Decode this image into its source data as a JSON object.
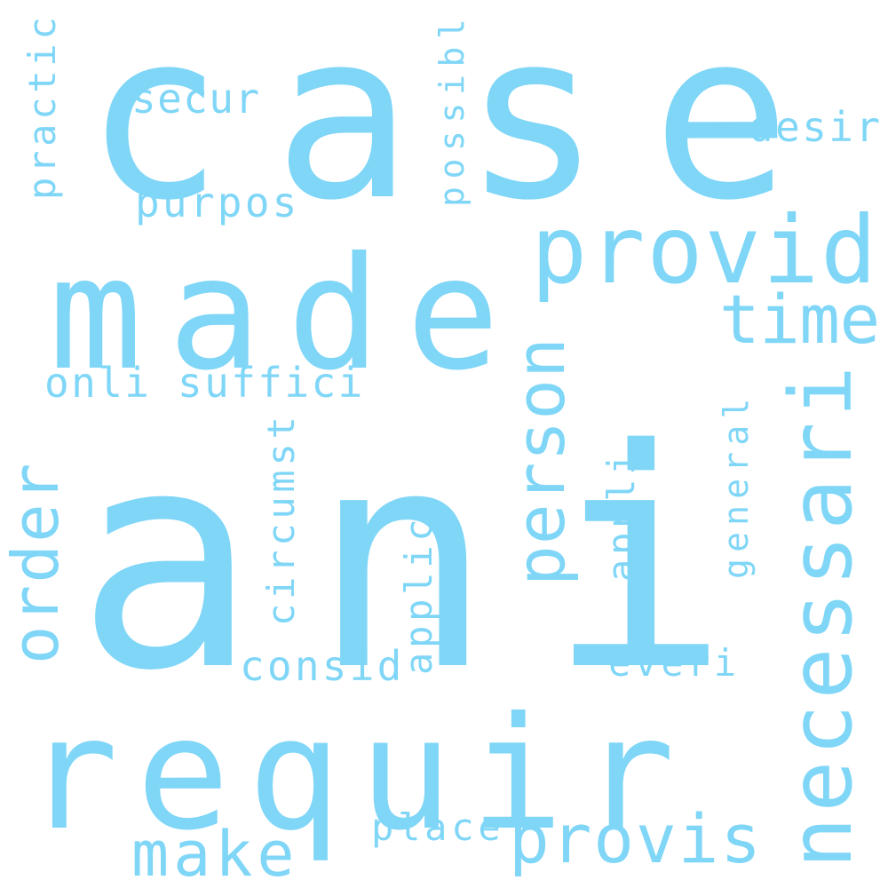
{
  "color": "#7fd6f7",
  "words": [
    {
      "text": "case"
    },
    {
      "text": "ani"
    },
    {
      "text": "made"
    },
    {
      "text": "requir"
    },
    {
      "text": "provid"
    },
    {
      "text": "necessari"
    },
    {
      "text": "person"
    },
    {
      "text": "time"
    },
    {
      "text": "order"
    },
    {
      "text": "provis"
    },
    {
      "text": "make"
    },
    {
      "text": "secur"
    },
    {
      "text": "purpos"
    },
    {
      "text": "desir"
    },
    {
      "text": "practic"
    },
    {
      "text": "possibl"
    },
    {
      "text": "suffici"
    },
    {
      "text": "onli"
    },
    {
      "text": "circumst"
    },
    {
      "text": "applic"
    },
    {
      "text": "appli"
    },
    {
      "text": "general"
    },
    {
      "text": "consid"
    },
    {
      "text": "everi"
    },
    {
      "text": "place"
    }
  ]
}
